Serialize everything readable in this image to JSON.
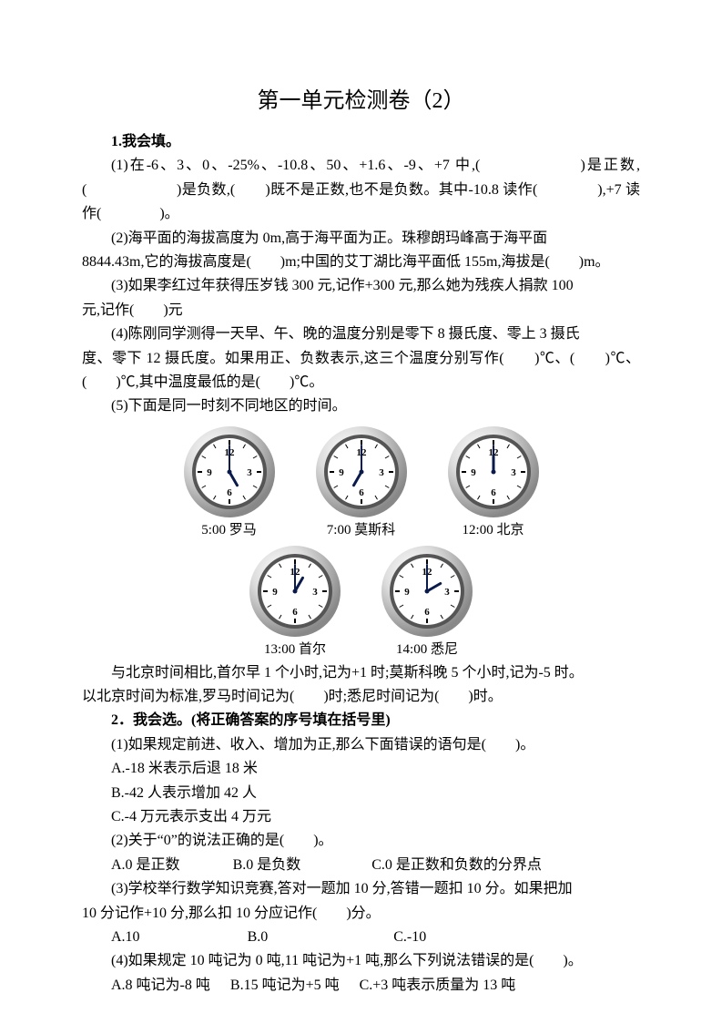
{
  "title": "第一单元检测卷（2）",
  "q1_header": "1.我会填。",
  "q1_1a": "(1)在-6、3、0、-25%、-10.8、50、+1.6、-9、+7 中,(　　　　　　)是正数,(　　　　　　)是负数,(　　)既不是正数,也不是负数。其中-10.8 读作(　　　　),+7 读作(　　　　)。",
  "q1_2_line1": "(2)海平面的海拔高度为 0m,高于海平面为正。珠穆朗玛峰高于海平面",
  "q1_2_line2": "8844.43m,它的海拔高度是(　　)m;中国的艾丁湖比海平面低 155m,海拔是(　　)m。",
  "q1_3_line1": "(3)如果李红过年获得压岁钱 300 元,记作+300 元,那么她为残疾人捐款 100",
  "q1_3_line2": "元,记作(　　)元",
  "q1_4_line1": "(4)陈刚同学测得一天早、午、晚的温度分别是零下 8 摄氏度、零上 3 摄氏",
  "q1_4_line2": "度、零下 12 摄氏度。如果用正、负数表示,这三个温度分别写作(　　)℃、(　　)℃、(　　)℃,其中温度最低的是(　　)℃。",
  "q1_5": "(5)下面是同一时刻不同地区的时间。",
  "clocks_row1": [
    {
      "label": "5:00 罗马",
      "hour": 5,
      "minute": 0
    },
    {
      "label": "7:00 莫斯科",
      "hour": 7,
      "minute": 0
    },
    {
      "label": "12:00 北京",
      "hour": 12,
      "minute": 0
    }
  ],
  "clocks_row2": [
    {
      "label": "13:00 首尔",
      "hour": 13,
      "minute": 0
    },
    {
      "label": "14:00 悉尼",
      "hour": 14,
      "minute": 0
    }
  ],
  "clock_style": {
    "size": 100,
    "rim_outer": "#dddddd",
    "rim_inner": "#888888",
    "face": "#ffffff",
    "tick": "#000000",
    "hand": "#0a1a4a",
    "number_color": "#000000",
    "number_fontsize": 11
  },
  "q1_5_followup_line1": "与北京时间相比,首尔早 1 个小时,记为+1 时;莫斯科晚 5 个小时,记为-5 时。",
  "q1_5_followup_line2": "以北京时间为标准,罗马时间记为(　　)时;悉尼时间记为(　　)时。",
  "q2_header": "2．我会选。(将正确答案的序号填在括号里)",
  "q2_1": "(1)如果规定前进、收入、增加为正,那么下面错误的语句是(　　)。",
  "q2_1_a": "A.-18 米表示后退 18 米",
  "q2_1_b": "B.-42 人表示增加 42 人",
  "q2_1_c": "C.-4 万元表示支出 4 万元",
  "q2_2": "(2)关于“0”的说法正确的是(　　)。",
  "q2_2_a": "A.0 是正数",
  "q2_2_b": "B.0 是负数",
  "q2_2_c": "C.0 是正数和负数的分界点",
  "q2_3_line1": "(3)学校举行数学知识竞赛,答对一题加 10 分,答错一题扣 10 分。如果把加",
  "q2_3_line2": "10 分记作+10 分,那么扣 10 分应记作(　　)分。",
  "q2_3_a": "A.10",
  "q2_3_b": "B.0",
  "q2_3_c": "C.-10",
  "q2_4": "(4)如果规定 10 吨记为 0 吨,11 吨记为+1 吨,那么下列说法错误的是(　　)。",
  "q2_4_a": "A.8 吨记为-8 吨",
  "q2_4_b": "B.15 吨记为+5 吨",
  "q2_4_c": "C.+3 吨表示质量为 13 吨"
}
